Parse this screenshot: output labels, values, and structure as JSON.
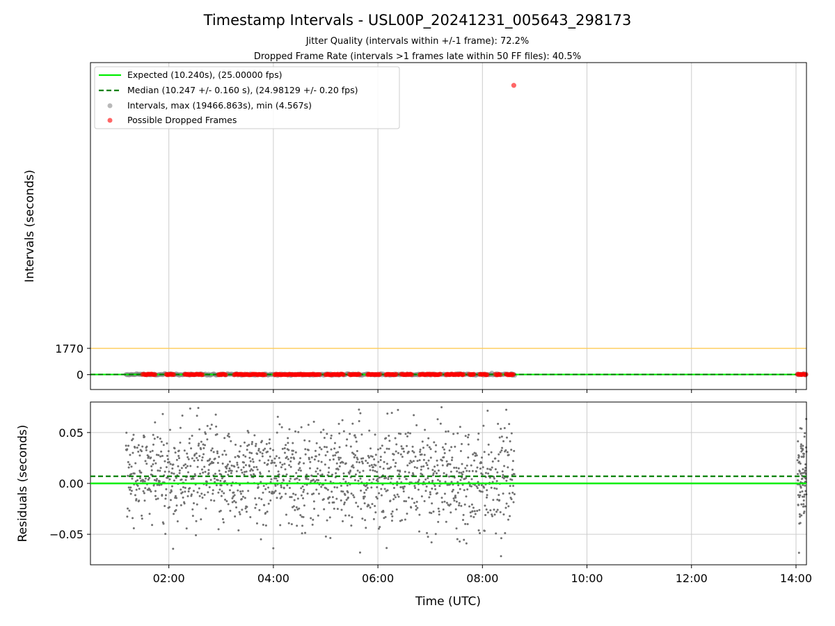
{
  "chart_data": {
    "type": "scatter",
    "title": "Timestamp Intervals - USL00P_20241231_005643_298173",
    "subtitles": [
      "Jitter Quality (intervals within +/-1 frame): 72.2%",
      "Dropped Frame Rate (intervals >1 frames late within 50 FF files): 40.5%"
    ],
    "xlabel": "Time (UTC)",
    "x_ticks": [
      "02:00",
      "04:00",
      "06:00",
      "08:00",
      "10:00",
      "12:00",
      "14:00"
    ],
    "x_range_hours": [
      0.5,
      14.2
    ],
    "grid": true,
    "legend": {
      "placement": "top-left",
      "entries": [
        {
          "label": "Expected (10.240s), (25.00000 fps)",
          "color": "#00ee00",
          "style": "solid-line"
        },
        {
          "label": "Median (10.247 +/- 0.160 s), (24.98129 +/- 0.20 fps)",
          "color": "#008000",
          "style": "dashed-line"
        },
        {
          "label": "Intervals, max (19466.863s), min (4.567s)",
          "color": "#808080",
          "style": "marker"
        },
        {
          "label": "Possible Dropped Frames",
          "color": "#ff0000",
          "style": "marker"
        }
      ]
    },
    "top_panel": {
      "ylabel": "Intervals (seconds)",
      "y_ticks": [
        0,
        1770
      ],
      "y_range": [
        -1000,
        21000
      ],
      "threshold_line": 1770,
      "threshold_color": "#ffcc55",
      "expected": 10.24,
      "median": 10.247,
      "max_interval": {
        "time_hours": 8.6,
        "value": 19466.863
      },
      "data_time_ranges_hours": [
        [
          1.18,
          8.62
        ],
        [
          14.03,
          14.2
        ]
      ],
      "dropped_frame_clusters_hours": [
        [
          1.5,
          1.75
        ],
        [
          1.95,
          2.1
        ],
        [
          2.3,
          2.65
        ],
        [
          2.95,
          3.1
        ],
        [
          3.25,
          3.85
        ],
        [
          4.02,
          4.9
        ],
        [
          5.0,
          5.35
        ],
        [
          5.45,
          5.65
        ],
        [
          5.8,
          6.05
        ],
        [
          6.15,
          6.35
        ],
        [
          6.45,
          6.65
        ],
        [
          6.8,
          7.2
        ],
        [
          7.3,
          7.65
        ],
        [
          7.75,
          7.85
        ],
        [
          7.95,
          8.1
        ],
        [
          8.25,
          8.35
        ],
        [
          8.45,
          8.6
        ],
        [
          14.03,
          14.2
        ]
      ]
    },
    "bottom_panel": {
      "ylabel": "Residuals (seconds)",
      "y_ticks": [
        0.05,
        0.0,
        -0.05
      ],
      "y_tick_labels": [
        "0.05",
        "0.00",
        "−0.05"
      ],
      "y_range": [
        -0.08,
        0.08
      ],
      "expected_residual": 0.0,
      "median_residual": 0.007,
      "residual_spread_std": 0.025
    },
    "colors": {
      "expected": "#00ee00",
      "median": "#008000",
      "intervals": "#808080",
      "dropped": "#ff0000",
      "grid": "#cccccc"
    }
  }
}
